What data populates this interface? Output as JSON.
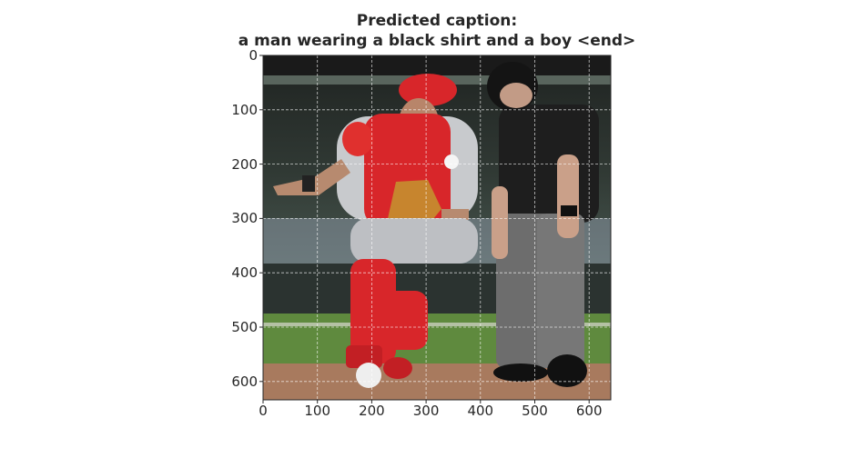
{
  "title": {
    "line1": "Predicted caption:",
    "line2": "a man wearing a black shirt and a boy <end>"
  },
  "image": {
    "description_icon": "baseball-photo",
    "ticks_x": [
      "0",
      "100",
      "200",
      "300",
      "400",
      "500",
      "600"
    ],
    "ticks_y": [
      "0",
      "100",
      "200",
      "300",
      "400",
      "500",
      "600"
    ],
    "xlim": [
      0,
      640
    ],
    "ylim": [
      640,
      0
    ],
    "grid": true,
    "colors": {
      "crowd": "#2a2a2a",
      "wall": "#3d4a40",
      "grass": "#5f8a3e",
      "dirt": "#a87a5e",
      "catcher_red": "#d8262a",
      "catcher_gray": "#b9bcc0",
      "umpire_black": "#1e1e1e",
      "umpire_gray": "#6d6d6d"
    }
  }
}
